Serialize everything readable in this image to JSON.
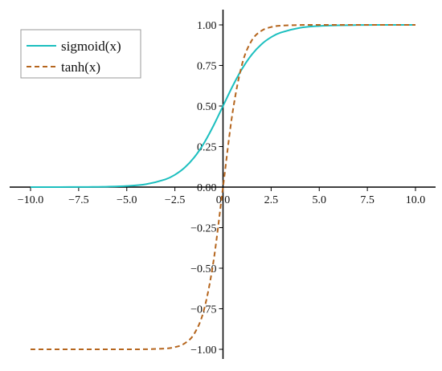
{
  "chart_data": {
    "type": "line",
    "title": "",
    "xlabel": "",
    "ylabel": "",
    "xlim": [
      -10,
      10
    ],
    "ylim": [
      -1,
      1
    ],
    "grid": false,
    "legend_placement": "top-left",
    "axes_through_origin": true,
    "x_ticks": [
      -10,
      -7.5,
      -5,
      -2.5,
      0,
      2.5,
      5,
      7.5,
      10
    ],
    "x_tick_labels": [
      "−10.0",
      "−7.5",
      "−5.0",
      "−2.5",
      "0.0",
      "2.5",
      "5.0",
      "7.5",
      "10.0"
    ],
    "y_ticks": [
      -1,
      -0.75,
      -0.5,
      -0.25,
      0,
      0.25,
      0.5,
      0.75,
      1
    ],
    "y_tick_labels": [
      "−1.00",
      "−0.75",
      "−0.50",
      "−0.25",
      "0.00",
      "0.25",
      "0.50",
      "0.75",
      "1.00"
    ],
    "x": [
      -10,
      -9,
      -8,
      -7,
      -6,
      -5,
      -4,
      -3,
      -2.5,
      -2,
      -1.5,
      -1,
      -0.5,
      0,
      0.5,
      1,
      1.5,
      2,
      2.5,
      3,
      4,
      5,
      6,
      7,
      8,
      9,
      10
    ],
    "series": [
      {
        "name": "sigmoid(x)",
        "color": "#1cbfbf",
        "style": "solid",
        "values": [
          5e-05,
          0.00012,
          0.00034,
          0.00091,
          0.00247,
          0.00669,
          0.018,
          0.0474,
          0.0759,
          0.1192,
          0.1824,
          0.2689,
          0.3775,
          0.5,
          0.6225,
          0.7311,
          0.8176,
          0.8808,
          0.9241,
          0.9526,
          0.982,
          0.9933,
          0.9975,
          0.9991,
          0.9997,
          0.9999,
          1.0
        ]
      },
      {
        "name": "tanh(x)",
        "color": "#b5651d",
        "style": "dashed",
        "values": [
          -1.0,
          -1.0,
          -1.0,
          -1.0,
          -1.0,
          -0.9999,
          -0.9993,
          -0.9951,
          -0.9866,
          -0.964,
          -0.9051,
          -0.7616,
          -0.4621,
          0.0,
          0.4621,
          0.7616,
          0.9051,
          0.964,
          0.9866,
          0.9951,
          0.9993,
          0.9999,
          1.0,
          1.0,
          1.0,
          1.0,
          1.0
        ]
      }
    ]
  }
}
